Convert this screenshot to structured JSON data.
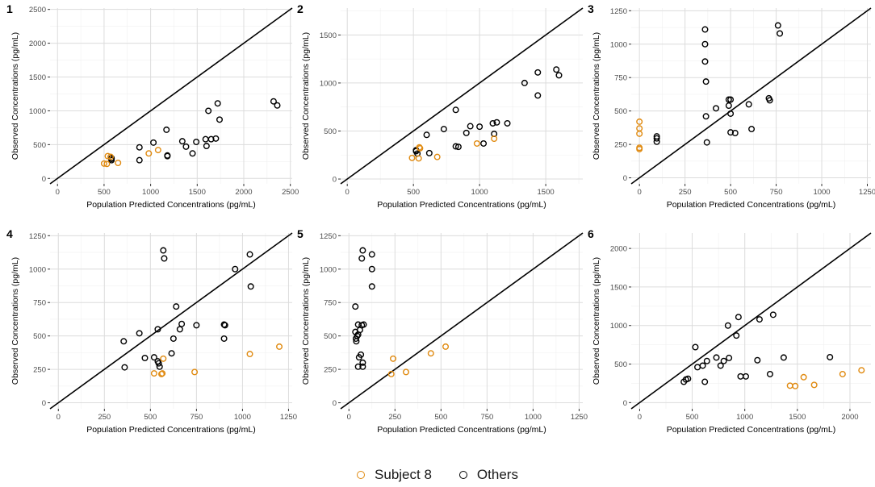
{
  "figure": {
    "legend": [
      {
        "label": "Subject 8",
        "color": "#e08a10"
      },
      {
        "label": "Others",
        "color": "#000000"
      }
    ]
  },
  "chart_data": [
    {
      "type": "scatter",
      "panel_label": "1",
      "xlabel": "Population Predicted Concentrations (pg/mL)",
      "ylabel": "Observed Concentrations (pg/mL)",
      "xlim": [
        -80,
        2520
      ],
      "ylim": [
        -80,
        2520
      ],
      "xticks": [
        0,
        500,
        1000,
        1500,
        2000,
        2500
      ],
      "yticks": [
        0,
        500,
        1000,
        1500,
        2000,
        2500
      ],
      "series": [
        {
          "name": "Subject 8",
          "color": "#e08a10",
          "points": [
            [
              500,
              220
            ],
            [
              530,
              215
            ],
            [
              540,
              330
            ],
            [
              570,
              320
            ],
            [
              650,
              230
            ],
            [
              980,
              370
            ],
            [
              1080,
              420
            ]
          ]
        },
        {
          "name": "Others",
          "color": "#000000",
          "points": [
            [
              580,
              300
            ],
            [
              580,
              290
            ],
            [
              580,
              270
            ],
            [
              880,
              460
            ],
            [
              880,
              270
            ],
            [
              1030,
              530
            ],
            [
              1170,
              720
            ],
            [
              1180,
              340
            ],
            [
              1180,
              330
            ],
            [
              1340,
              550
            ],
            [
              1380,
              470
            ],
            [
              1450,
              370
            ],
            [
              1490,
              540
            ],
            [
              1590,
              580
            ],
            [
              1600,
              480
            ],
            [
              1620,
              1000
            ],
            [
              1650,
              580
            ],
            [
              1700,
              590
            ],
            [
              1720,
              1110
            ],
            [
              1740,
              870
            ],
            [
              2320,
              1140
            ],
            [
              2360,
              1080
            ]
          ]
        }
      ]
    },
    {
      "type": "scatter",
      "panel_label": "2",
      "xlabel": "Population Predicted Concentrations (pg/mL)",
      "ylabel": "Observed Concentrations (pg/mL)",
      "xlim": [
        -50,
        1780
      ],
      "ylim": [
        -50,
        1780
      ],
      "xticks": [
        0,
        500,
        1000,
        1500
      ],
      "yticks": [
        0,
        500,
        1000,
        1500
      ],
      "series": [
        {
          "name": "Subject 8",
          "color": "#e08a10",
          "points": [
            [
              490,
              220
            ],
            [
              540,
              215
            ],
            [
              545,
              330
            ],
            [
              550,
              320
            ],
            [
              680,
              230
            ],
            [
              980,
              370
            ],
            [
              1110,
              420
            ]
          ]
        },
        {
          "name": "Others",
          "color": "#000000",
          "points": [
            [
              520,
              300
            ],
            [
              520,
              290
            ],
            [
              530,
              265
            ],
            [
              600,
              460
            ],
            [
              620,
              270
            ],
            [
              730,
              520
            ],
            [
              820,
              720
            ],
            [
              820,
              340
            ],
            [
              840,
              335
            ],
            [
              900,
              480
            ],
            [
              930,
              550
            ],
            [
              1000,
              545
            ],
            [
              1030,
              370
            ],
            [
              1100,
              580
            ],
            [
              1110,
              470
            ],
            [
              1130,
              590
            ],
            [
              1210,
              580
            ],
            [
              1340,
              1000
            ],
            [
              1440,
              1110
            ],
            [
              1440,
              870
            ],
            [
              1580,
              1140
            ],
            [
              1600,
              1080
            ]
          ]
        }
      ]
    },
    {
      "type": "scatter",
      "panel_label": "3",
      "xlabel": "Population Predicted Concentrations (pg/mL)",
      "ylabel": "Observed Concentrations (pg/mL)",
      "xlim": [
        -45,
        1270
      ],
      "ylim": [
        -45,
        1270
      ],
      "xticks": [
        0,
        250,
        500,
        750,
        1000,
        1250
      ],
      "yticks": [
        0,
        250,
        500,
        750,
        1000,
        1250
      ],
      "series": [
        {
          "name": "Subject 8",
          "color": "#e08a10",
          "points": [
            [
              0,
              420
            ],
            [
              0,
              370
            ],
            [
              0,
              330
            ],
            [
              0,
              225
            ],
            [
              0,
              215
            ]
          ]
        },
        {
          "name": "Others",
          "color": "#000000",
          "points": [
            [
              95,
              310
            ],
            [
              95,
              295
            ],
            [
              95,
              270
            ],
            [
              360,
              1110
            ],
            [
              360,
              1000
            ],
            [
              360,
              870
            ],
            [
              365,
              720
            ],
            [
              365,
              460
            ],
            [
              370,
              265
            ],
            [
              420,
              520
            ],
            [
              490,
              585
            ],
            [
              500,
              585
            ],
            [
              490,
              540
            ],
            [
              500,
              480
            ],
            [
              500,
              340
            ],
            [
              525,
              335
            ],
            [
              600,
              550
            ],
            [
              615,
              365
            ],
            [
              710,
              595
            ],
            [
              715,
              580
            ],
            [
              760,
              1140
            ],
            [
              770,
              1080
            ]
          ]
        }
      ]
    },
    {
      "type": "scatter",
      "panel_label": "4",
      "xlabel": "Population Predicted Concentrations (pg/mL)",
      "ylabel": "Observed Concentrations (pg/mL)",
      "xlim": [
        -45,
        1270
      ],
      "ylim": [
        -45,
        1270
      ],
      "xticks": [
        0,
        250,
        500,
        750,
        1000,
        1250
      ],
      "yticks": [
        0,
        250,
        500,
        750,
        1000,
        1250
      ],
      "series": [
        {
          "name": "Subject 8",
          "color": "#e08a10",
          "points": [
            [
              520,
              220
            ],
            [
              560,
              215
            ],
            [
              565,
              220
            ],
            [
              570,
              330
            ],
            [
              740,
              230
            ],
            [
              1040,
              365
            ],
            [
              1200,
              420
            ]
          ]
        },
        {
          "name": "Others",
          "color": "#000000",
          "points": [
            [
              355,
              460
            ],
            [
              360,
              265
            ],
            [
              440,
              520
            ],
            [
              470,
              335
            ],
            [
              520,
              340
            ],
            [
              540,
              550
            ],
            [
              540,
              310
            ],
            [
              545,
              295
            ],
            [
              550,
              270
            ],
            [
              570,
              1140
            ],
            [
              575,
              1080
            ],
            [
              615,
              370
            ],
            [
              625,
              480
            ],
            [
              640,
              720
            ],
            [
              660,
              550
            ],
            [
              670,
              590
            ],
            [
              750,
              580
            ],
            [
              900,
              585
            ],
            [
              905,
              580
            ],
            [
              900,
              480
            ],
            [
              960,
              1000
            ],
            [
              1040,
              1110
            ],
            [
              1045,
              870
            ]
          ]
        }
      ]
    },
    {
      "type": "scatter",
      "panel_label": "5",
      "xlabel": "Population Predicted Concentrations (pg/mL)",
      "ylabel": "Observed Concentrations (pg/mL)",
      "xlim": [
        -45,
        1270
      ],
      "ylim": [
        -45,
        1270
      ],
      "xticks": [
        0,
        250,
        500,
        750,
        1000,
        1250
      ],
      "yticks": [
        0,
        250,
        500,
        750,
        1000,
        1250
      ],
      "series": [
        {
          "name": "Subject 8",
          "color": "#e08a10",
          "points": [
            [
              230,
              215
            ],
            [
              240,
              330
            ],
            [
              310,
              230
            ],
            [
              445,
              370
            ],
            [
              525,
              420
            ]
          ]
        },
        {
          "name": "Others",
          "color": "#000000",
          "points": [
            [
              35,
              720
            ],
            [
              35,
              530
            ],
            [
              38,
              480
            ],
            [
              40,
              460
            ],
            [
              45,
              500
            ],
            [
              50,
              585
            ],
            [
              50,
              510
            ],
            [
              50,
              270
            ],
            [
              55,
              340
            ],
            [
              60,
              545
            ],
            [
              65,
              360
            ],
            [
              70,
              1080
            ],
            [
              70,
              580
            ],
            [
              75,
              1140
            ],
            [
              75,
              300
            ],
            [
              75,
              270
            ],
            [
              80,
              585
            ],
            [
              125,
              1110
            ],
            [
              125,
              1000
            ],
            [
              125,
              870
            ]
          ]
        }
      ]
    },
    {
      "type": "scatter",
      "panel_label": "6",
      "xlabel": "Population Predicted Concentrations (pg/mL)",
      "ylabel": "Observed Concentrations (pg/mL)",
      "xlim": [
        -80,
        2200
      ],
      "ylim": [
        -80,
        2200
      ],
      "xticks": [
        0,
        500,
        1000,
        1500,
        2000
      ],
      "yticks": [
        0,
        500,
        1000,
        1500,
        2000
      ],
      "series": [
        {
          "name": "Subject 8",
          "color": "#e08a10",
          "points": [
            [
              1430,
              220
            ],
            [
              1480,
              215
            ],
            [
              1560,
              330
            ],
            [
              1660,
              230
            ],
            [
              1930,
              370
            ],
            [
              2110,
              420
            ]
          ]
        },
        {
          "name": "Others",
          "color": "#000000",
          "points": [
            [
              420,
              270
            ],
            [
              440,
              300
            ],
            [
              460,
              310
            ],
            [
              530,
              720
            ],
            [
              550,
              460
            ],
            [
              600,
              480
            ],
            [
              620,
              270
            ],
            [
              640,
              540
            ],
            [
              730,
              585
            ],
            [
              770,
              480
            ],
            [
              800,
              540
            ],
            [
              840,
              1000
            ],
            [
              850,
              580
            ],
            [
              920,
              870
            ],
            [
              940,
              1110
            ],
            [
              960,
              340
            ],
            [
              1010,
              340
            ],
            [
              1120,
              550
            ],
            [
              1140,
              1080
            ],
            [
              1240,
              370
            ],
            [
              1270,
              1140
            ],
            [
              1370,
              585
            ],
            [
              1810,
              590
            ]
          ]
        }
      ]
    }
  ]
}
